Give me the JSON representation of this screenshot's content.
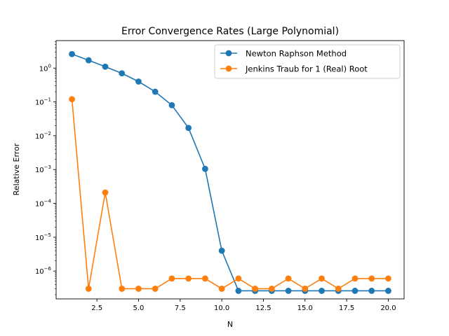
{
  "chart_data": {
    "type": "line",
    "title": "Error Convergence Rates (Large Polynomial)",
    "xlabel": "N",
    "ylabel": "Relative Error",
    "x_scale": "linear",
    "y_scale": "log",
    "xlim": [
      0.05,
      20.95
    ],
    "ylim": [
      1.5e-07,
      6.5
    ],
    "x_ticks": [
      2.5,
      5.0,
      7.5,
      10.0,
      12.5,
      15.0,
      17.5,
      20.0
    ],
    "x_tick_labels": [
      "2.5",
      "5.0",
      "7.5",
      "10.0",
      "12.5",
      "15.0",
      "17.5",
      "20.0"
    ],
    "y_ticks": [
      1e-06,
      1e-05,
      0.0001,
      0.001,
      0.01,
      0.1,
      1
    ],
    "y_tick_exponents": [
      "−6",
      "−5",
      "−4",
      "−3",
      "−2",
      "−1",
      "0"
    ],
    "legend_position": "upper-right",
    "grid": false,
    "x": [
      1,
      2,
      3,
      4,
      5,
      6,
      7,
      8,
      9,
      10,
      11,
      12,
      13,
      14,
      15,
      16,
      17,
      18,
      19,
      20
    ],
    "series": [
      {
        "name": "Newton Raphson Method",
        "color": "#1f77b4",
        "values": [
          2.6,
          1.7,
          1.1,
          0.7,
          0.4,
          0.2,
          0.08,
          0.017,
          0.00105,
          4e-06,
          2.6e-07,
          2.6e-07,
          2.6e-07,
          2.6e-07,
          2.6e-07,
          2.6e-07,
          2.6e-07,
          2.6e-07,
          2.6e-07,
          2.6e-07
        ]
      },
      {
        "name": "Jenkins Traub for 1 (Real) Root",
        "color": "#ff7f0e",
        "values": [
          0.12,
          3e-07,
          0.00021,
          3e-07,
          3e-07,
          3e-07,
          6e-07,
          6e-07,
          6e-07,
          3e-07,
          6e-07,
          3e-07,
          3e-07,
          6e-07,
          3e-07,
          6e-07,
          3e-07,
          6e-07,
          6e-07,
          6e-07
        ]
      }
    ]
  }
}
